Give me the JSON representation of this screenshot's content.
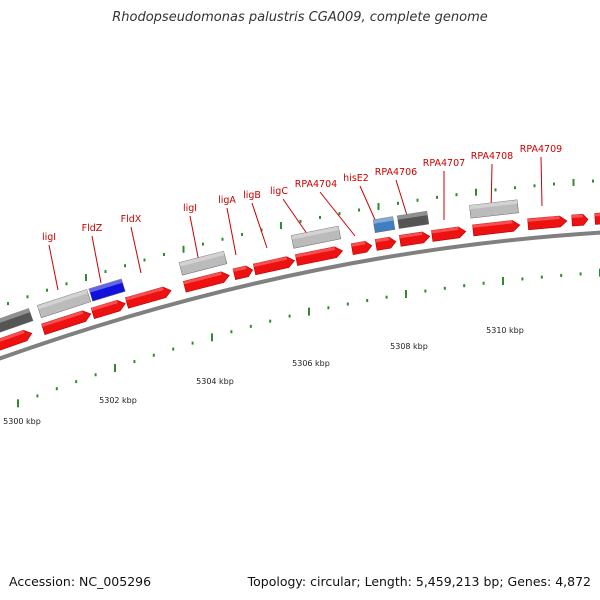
{
  "title": "Rhodopseudomonas palustris CGA009, complete genome",
  "footer": {
    "accession": "Accession: NC_005296",
    "summary": "Topology: circular; Length: 5,459,213 bp; Genes: 4,872"
  },
  "colors": {
    "cds": "#ee1111",
    "gene_label": "#cc0000",
    "tick": "#2e8b2e",
    "backbone": "#808080"
  },
  "gene_labels": [
    "ligI",
    "FldZ",
    "FldX",
    "ligI",
    "ligA",
    "ligB",
    "ligC",
    "RPA4704",
    "hisE2",
    "RPA4706",
    "RPA4707",
    "RPA4708",
    "RPA4709"
  ],
  "kbp_labels": [
    "5300 kbp",
    "5302 kbp",
    "5304 kbp",
    "5306 kbp",
    "5308 kbp",
    "5310 kbp"
  ]
}
